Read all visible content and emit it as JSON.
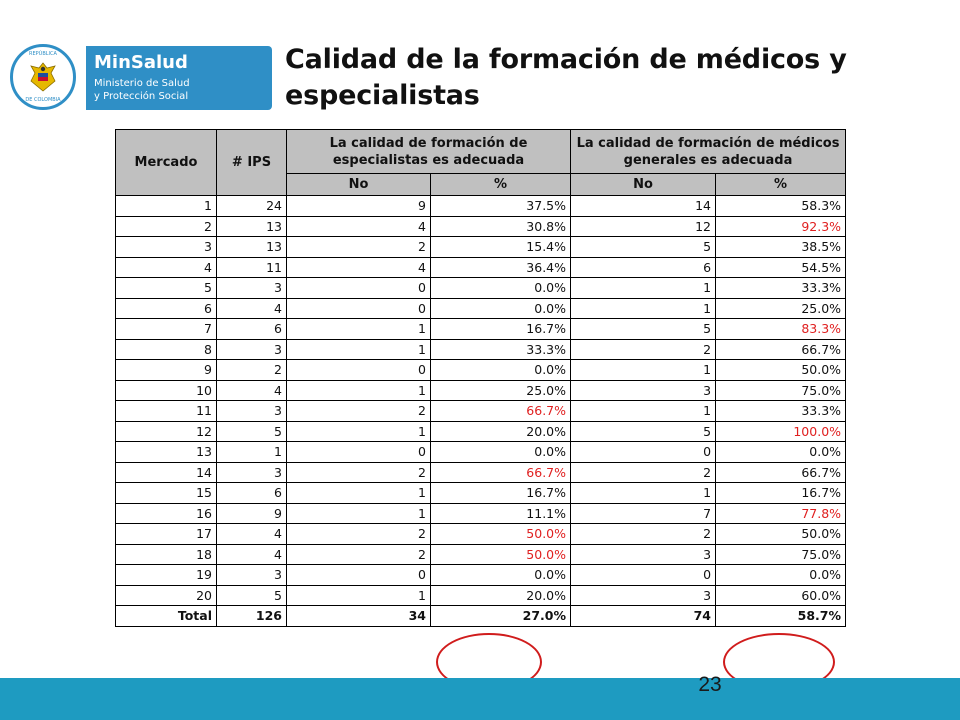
{
  "logo": {
    "seal_top": "REPÚBLICA",
    "seal_bottom": "DE COLOMBIA",
    "brand_name": "MinSalud",
    "brand_line1": "Ministerio de Salud",
    "brand_line2": "y Protección Social"
  },
  "title": "Calidad de la formación de médicos y especialistas",
  "table": {
    "headers": {
      "mercado": "Mercado",
      "ips": "# IPS",
      "group_especialistas": "La calidad de formación de especialistas es adecuada",
      "group_generales": "La calidad de formación de médicos generales es adecuada",
      "no": "No",
      "pct": "%"
    },
    "rows": [
      {
        "mercado": "1",
        "ips": "24",
        "esp_no": "9",
        "esp_pct": "37.5%",
        "esp_red": false,
        "gen_no": "14",
        "gen_pct": "58.3%",
        "gen_red": false
      },
      {
        "mercado": "2",
        "ips": "13",
        "esp_no": "4",
        "esp_pct": "30.8%",
        "esp_red": false,
        "gen_no": "12",
        "gen_pct": "92.3%",
        "gen_red": true
      },
      {
        "mercado": "3",
        "ips": "13",
        "esp_no": "2",
        "esp_pct": "15.4%",
        "esp_red": false,
        "gen_no": "5",
        "gen_pct": "38.5%",
        "gen_red": false
      },
      {
        "mercado": "4",
        "ips": "11",
        "esp_no": "4",
        "esp_pct": "36.4%",
        "esp_red": false,
        "gen_no": "6",
        "gen_pct": "54.5%",
        "gen_red": false
      },
      {
        "mercado": "5",
        "ips": "3",
        "esp_no": "0",
        "esp_pct": "0.0%",
        "esp_red": false,
        "gen_no": "1",
        "gen_pct": "33.3%",
        "gen_red": false
      },
      {
        "mercado": "6",
        "ips": "4",
        "esp_no": "0",
        "esp_pct": "0.0%",
        "esp_red": false,
        "gen_no": "1",
        "gen_pct": "25.0%",
        "gen_red": false
      },
      {
        "mercado": "7",
        "ips": "6",
        "esp_no": "1",
        "esp_pct": "16.7%",
        "esp_red": false,
        "gen_no": "5",
        "gen_pct": "83.3%",
        "gen_red": true
      },
      {
        "mercado": "8",
        "ips": "3",
        "esp_no": "1",
        "esp_pct": "33.3%",
        "esp_red": false,
        "gen_no": "2",
        "gen_pct": "66.7%",
        "gen_red": false
      },
      {
        "mercado": "9",
        "ips": "2",
        "esp_no": "0",
        "esp_pct": "0.0%",
        "esp_red": false,
        "gen_no": "1",
        "gen_pct": "50.0%",
        "gen_red": false
      },
      {
        "mercado": "10",
        "ips": "4",
        "esp_no": "1",
        "esp_pct": "25.0%",
        "esp_red": false,
        "gen_no": "3",
        "gen_pct": "75.0%",
        "gen_red": false
      },
      {
        "mercado": "11",
        "ips": "3",
        "esp_no": "2",
        "esp_pct": "66.7%",
        "esp_red": true,
        "gen_no": "1",
        "gen_pct": "33.3%",
        "gen_red": false
      },
      {
        "mercado": "12",
        "ips": "5",
        "esp_no": "1",
        "esp_pct": "20.0%",
        "esp_red": false,
        "gen_no": "5",
        "gen_pct": "100.0%",
        "gen_red": true
      },
      {
        "mercado": "13",
        "ips": "1",
        "esp_no": "0",
        "esp_pct": "0.0%",
        "esp_red": false,
        "gen_no": "0",
        "gen_pct": "0.0%",
        "gen_red": false
      },
      {
        "mercado": "14",
        "ips": "3",
        "esp_no": "2",
        "esp_pct": "66.7%",
        "esp_red": true,
        "gen_no": "2",
        "gen_pct": "66.7%",
        "gen_red": false
      },
      {
        "mercado": "15",
        "ips": "6",
        "esp_no": "1",
        "esp_pct": "16.7%",
        "esp_red": false,
        "gen_no": "1",
        "gen_pct": "16.7%",
        "gen_red": false
      },
      {
        "mercado": "16",
        "ips": "9",
        "esp_no": "1",
        "esp_pct": "11.1%",
        "esp_red": false,
        "gen_no": "7",
        "gen_pct": "77.8%",
        "gen_red": true
      },
      {
        "mercado": "17",
        "ips": "4",
        "esp_no": "2",
        "esp_pct": "50.0%",
        "esp_red": true,
        "gen_no": "2",
        "gen_pct": "50.0%",
        "gen_red": false
      },
      {
        "mercado": "18",
        "ips": "4",
        "esp_no": "2",
        "esp_pct": "50.0%",
        "esp_red": true,
        "gen_no": "3",
        "gen_pct": "75.0%",
        "gen_red": false
      },
      {
        "mercado": "19",
        "ips": "3",
        "esp_no": "0",
        "esp_pct": "0.0%",
        "esp_red": false,
        "gen_no": "0",
        "gen_pct": "0.0%",
        "gen_red": false
      },
      {
        "mercado": "20",
        "ips": "5",
        "esp_no": "1",
        "esp_pct": "20.0%",
        "esp_red": false,
        "gen_no": "3",
        "gen_pct": "60.0%",
        "gen_red": false
      }
    ],
    "total": {
      "label": "Total",
      "ips": "126",
      "esp_no": "34",
      "esp_pct": "27.0%",
      "gen_no": "74",
      "gen_pct": "58.7%"
    }
  },
  "page_number": "23",
  "colors": {
    "accent": "#1e9bc1",
    "brand": "#2f8fc6",
    "highlight_red": "#e02020",
    "header_gray": "#c0c0c0",
    "circle": "#d01c1c"
  }
}
